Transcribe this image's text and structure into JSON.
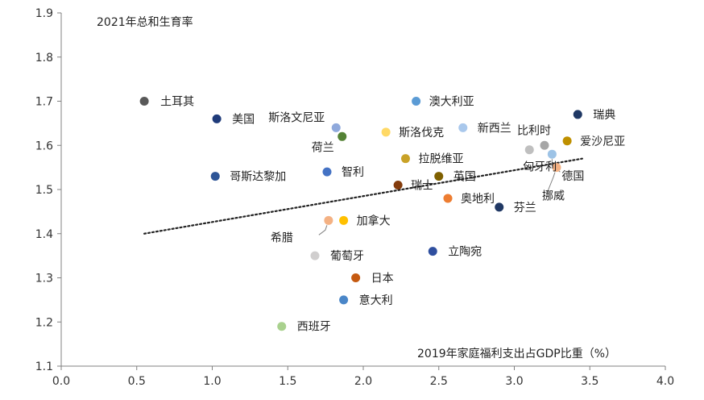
{
  "chart_data": {
    "type": "scatter",
    "title": "",
    "ylabel": "2021年总和生育率",
    "xlabel": "2019年家庭福利支出占GDP比重（%）",
    "xlim": [
      0.0,
      4.0
    ],
    "ylim": [
      1.1,
      1.9
    ],
    "xticks": [
      "0.0",
      "0.5",
      "1.0",
      "1.5",
      "2.0",
      "2.5",
      "3.0",
      "3.5",
      "4.0"
    ],
    "yticks": [
      "1.1",
      "1.2",
      "1.3",
      "1.4",
      "1.5",
      "1.6",
      "1.7",
      "1.8",
      "1.9"
    ],
    "grid": false,
    "trendline": {
      "style": "dotted",
      "x": [
        0.55,
        3.45
      ],
      "y": [
        1.4,
        1.57
      ]
    },
    "points": [
      {
        "label": "土耳其",
        "x": 0.55,
        "y": 1.7,
        "color": "#595959"
      },
      {
        "label": "美国",
        "x": 1.03,
        "y": 1.66,
        "color": "#1f3b7a"
      },
      {
        "label": "斯洛文尼亚",
        "x": 1.82,
        "y": 1.64,
        "color": "#8fa9dc"
      },
      {
        "label": "荷兰",
        "x": 1.86,
        "y": 1.62,
        "color": "#548235"
      },
      {
        "label": "澳大利亚",
        "x": 2.35,
        "y": 1.7,
        "color": "#5b9bd5"
      },
      {
        "label": "斯洛伐克",
        "x": 2.15,
        "y": 1.63,
        "color": "#ffd966"
      },
      {
        "label": "新西兰",
        "x": 2.66,
        "y": 1.64,
        "color": "#a9c8ec"
      },
      {
        "label": "瑞典",
        "x": 3.42,
        "y": 1.67,
        "color": "#1f3864"
      },
      {
        "label": "比利时",
        "x": 3.2,
        "y": 1.6,
        "color": "#a6a6a6"
      },
      {
        "label": "爱沙尼亚",
        "x": 3.35,
        "y": 1.61,
        "color": "#bf9000"
      },
      {
        "label": "拉脱维亚",
        "x": 2.28,
        "y": 1.57,
        "color": "#c9a227"
      },
      {
        "label": "匈牙利",
        "x": 3.1,
        "y": 1.59,
        "color": "#bfbfbf"
      },
      {
        "label": "德国",
        "x": 3.25,
        "y": 1.58,
        "color": "#9dc3e6"
      },
      {
        "label": "挪威",
        "x": 3.28,
        "y": 1.55,
        "color": "#f4b183"
      },
      {
        "label": "哥斯达黎加",
        "x": 1.02,
        "y": 1.53,
        "color": "#2e5597"
      },
      {
        "label": "智利",
        "x": 1.76,
        "y": 1.54,
        "color": "#4472c4"
      },
      {
        "label": "英国",
        "x": 2.5,
        "y": 1.53,
        "color": "#7f6000"
      },
      {
        "label": "瑞士",
        "x": 2.23,
        "y": 1.51,
        "color": "#843c0c"
      },
      {
        "label": "奥地利",
        "x": 2.56,
        "y": 1.48,
        "color": "#ed7d31"
      },
      {
        "label": "芬兰",
        "x": 2.9,
        "y": 1.46,
        "color": "#203864"
      },
      {
        "label": "希腊",
        "x": 1.77,
        "y": 1.43,
        "color": "#f4b183"
      },
      {
        "label": "加拿大",
        "x": 1.87,
        "y": 1.43,
        "color": "#ffc000"
      },
      {
        "label": "葡萄牙",
        "x": 1.68,
        "y": 1.35,
        "color": "#d0cece"
      },
      {
        "label": "立陶宛",
        "x": 2.46,
        "y": 1.36,
        "color": "#2f4f9f"
      },
      {
        "label": "日本",
        "x": 1.95,
        "y": 1.3,
        "color": "#c55a11"
      },
      {
        "label": "意大利",
        "x": 1.87,
        "y": 1.25,
        "color": "#4a86c8"
      },
      {
        "label": "西班牙",
        "x": 1.46,
        "y": 1.19,
        "color": "#a9d18e"
      }
    ]
  }
}
